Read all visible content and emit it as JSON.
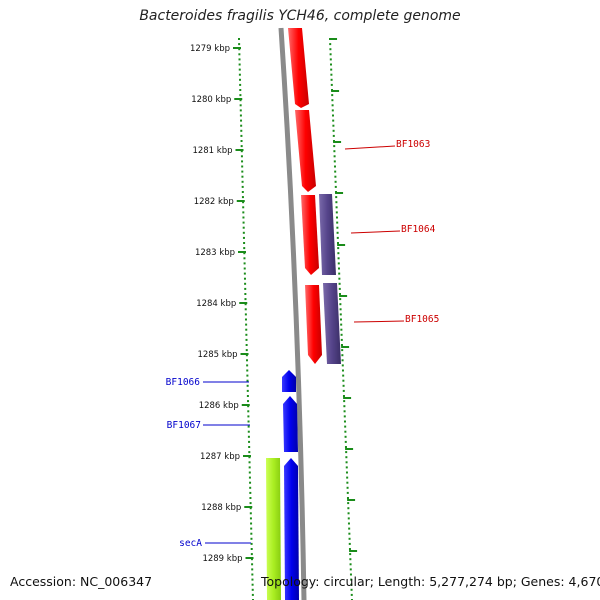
{
  "title": "Bacteroides fragilis YCH46, complete genome",
  "accession": "Accession: NC_006347",
  "topology": "Topology: circular; Length: 5,277,274 bp; Genes: 4,670",
  "ruler": {
    "tick_labels": [
      "1279 kbp",
      "1280 kbp",
      "1281 kbp",
      "1282 kbp",
      "1283 kbp",
      "1284 kbp",
      "1285 kbp",
      "1286 kbp",
      "1287 kbp",
      "1288 kbp",
      "1289 kbp"
    ],
    "tick_color": "#1a8c1a"
  },
  "genes_forward_labels": [
    {
      "name": "BF1063",
      "color": "#cc0000"
    },
    {
      "name": "BF1064",
      "color": "#cc0000"
    },
    {
      "name": "BF1065",
      "color": "#cc0000"
    }
  ],
  "genes_reverse_labels": [
    {
      "name": "BF1066",
      "color": "#0000cc"
    },
    {
      "name": "BF1067",
      "color": "#0000cc"
    },
    {
      "name": "secA",
      "color": "#0000cc"
    }
  ],
  "colors": {
    "red_gene": "#ff0000",
    "purple_gene": "#55448a",
    "blue_gene": "#0000ee",
    "green_gene": "#aaee22",
    "backbone": "#888888"
  }
}
